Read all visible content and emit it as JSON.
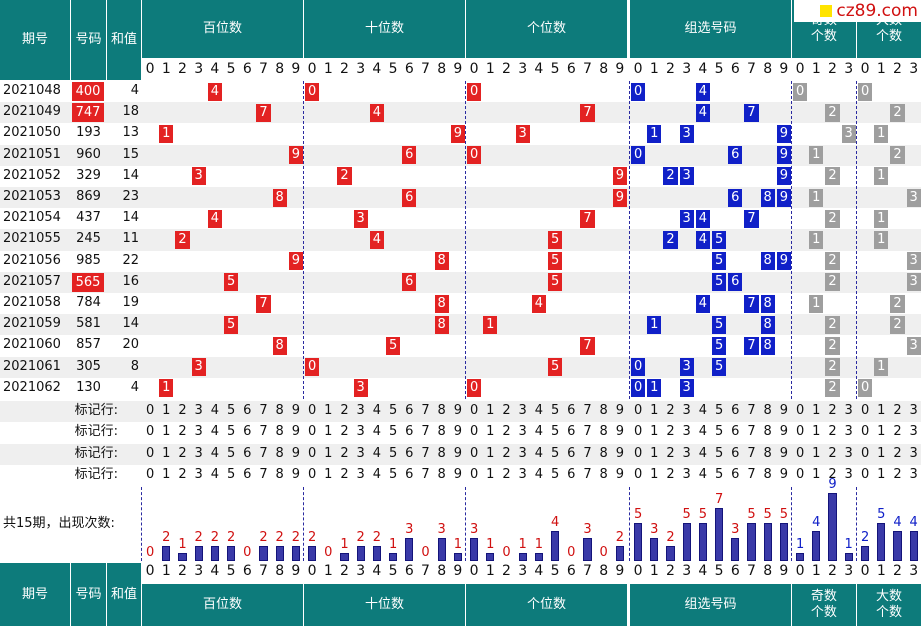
{
  "logo": {
    "text": "cz89.com",
    "color": "#d01010"
  },
  "colors": {
    "header": "#0d7b7b",
    "red": "#e32222",
    "blue": "#1020c8",
    "gray": "#9e9e9e",
    "bar": "#3a3aa8"
  },
  "headers": {
    "period": "期号",
    "number": "号码",
    "sum": "和值",
    "hundreds": "百位数",
    "tens": "十位数",
    "units": "个位数",
    "group": "组选号码",
    "odd": "奇数个数",
    "big": "大数个数"
  },
  "digits10": [
    "0",
    "1",
    "2",
    "3",
    "4",
    "5",
    "6",
    "7",
    "8",
    "9"
  ],
  "digits4": [
    "0",
    "1",
    "2",
    "3"
  ],
  "rows": [
    {
      "period": "2021048",
      "number": "400",
      "sum": "4",
      "special": true
    },
    {
      "period": "2021049",
      "number": "747",
      "sum": "18",
      "special": true
    },
    {
      "period": "2021050",
      "number": "193",
      "sum": "13",
      "special": false
    },
    {
      "period": "2021051",
      "number": "960",
      "sum": "15",
      "special": false
    },
    {
      "period": "2021052",
      "number": "329",
      "sum": "14",
      "special": false
    },
    {
      "period": "2021053",
      "number": "869",
      "sum": "23",
      "special": false
    },
    {
      "period": "2021054",
      "number": "437",
      "sum": "14",
      "special": false
    },
    {
      "period": "2021055",
      "number": "245",
      "sum": "11",
      "special": false
    },
    {
      "period": "2021056",
      "number": "985",
      "sum": "22",
      "special": false
    },
    {
      "period": "2021057",
      "number": "565",
      "sum": "16",
      "special": true
    },
    {
      "period": "2021058",
      "number": "784",
      "sum": "19",
      "special": false
    },
    {
      "period": "2021059",
      "number": "581",
      "sum": "14",
      "special": false
    },
    {
      "period": "2021060",
      "number": "857",
      "sum": "20",
      "special": false
    },
    {
      "period": "2021061",
      "number": "305",
      "sum": "8",
      "special": false
    },
    {
      "period": "2021062",
      "number": "130",
      "sum": "4",
      "special": false
    }
  ],
  "marker_label": "标记行:",
  "marker_rows": 4,
  "stats_label": "共15期，出现次数:",
  "counts": {
    "hundreds": [
      0,
      2,
      1,
      2,
      2,
      2,
      0,
      2,
      2,
      2
    ],
    "tens": [
      2,
      0,
      1,
      2,
      2,
      1,
      3,
      0,
      3,
      1
    ],
    "units": [
      3,
      1,
      0,
      1,
      1,
      4,
      0,
      3,
      0,
      2
    ],
    "group": [
      5,
      3,
      2,
      5,
      5,
      7,
      3,
      5,
      5,
      5
    ],
    "odd": [
      1,
      4,
      9,
      1
    ],
    "big": [
      2,
      5,
      4,
      4
    ]
  }
}
